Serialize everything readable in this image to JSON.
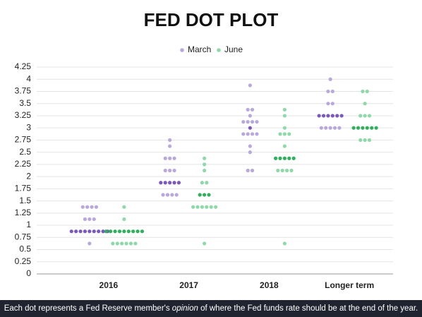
{
  "chart_data": {
    "type": "dot",
    "title": "FED DOT PLOT",
    "categories": [
      "2016",
      "2017",
      "2018",
      "Longer term"
    ],
    "ylim": [
      0,
      4.25
    ],
    "yticks": [
      0,
      0.25,
      0.5,
      0.75,
      1,
      1.25,
      1.5,
      1.75,
      2,
      2.25,
      2.5,
      2.75,
      3,
      3.25,
      3.5,
      3.75,
      4,
      4.25
    ],
    "grid": true,
    "series": [
      {
        "name": "March",
        "color": "#b9a8de",
        "median_color": "#7b58be",
        "medians": [
          0.875,
          1.875,
          3,
          3.25
        ],
        "values": [
          [
            0.625,
            0.875,
            0.875,
            0.875,
            0.875,
            0.875,
            0.875,
            0.875,
            0.875,
            0.875,
            1.125,
            1.125,
            1.125,
            1.375,
            1.375,
            1.375,
            1.375
          ],
          [
            1.625,
            1.625,
            1.625,
            1.625,
            1.875,
            1.875,
            1.875,
            1.875,
            1.875,
            2.125,
            2.125,
            2.125,
            2.375,
            2.375,
            2.375,
            2.625,
            2.75
          ],
          [
            2.125,
            2.125,
            2.5,
            2.625,
            2.875,
            2.875,
            2.875,
            2.875,
            3,
            3.125,
            3.125,
            3.125,
            3.125,
            3.25,
            3.375,
            3.375,
            3.875
          ],
          [
            3,
            3,
            3,
            3,
            3,
            3.25,
            3.25,
            3.25,
            3.25,
            3.25,
            3.25,
            3.5,
            3.5,
            3.75,
            3.75,
            4
          ]
        ]
      },
      {
        "name": "June",
        "color": "#8ed9a8",
        "median_color": "#2eb05c",
        "medians": [
          0.875,
          1.625,
          2.375,
          3
        ],
        "values": [
          [
            0.625,
            0.625,
            0.625,
            0.625,
            0.625,
            0.625,
            0.875,
            0.875,
            0.875,
            0.875,
            0.875,
            0.875,
            0.875,
            0.875,
            0.875,
            1.125,
            1.375
          ],
          [
            0.625,
            1.375,
            1.375,
            1.375,
            1.375,
            1.375,
            1.375,
            1.625,
            1.625,
            1.625,
            1.875,
            1.875,
            2.125,
            2.25,
            2.375
          ],
          [
            0.625,
            2.125,
            2.125,
            2.125,
            2.125,
            2.375,
            2.375,
            2.375,
            2.375,
            2.375,
            2.625,
            2.875,
            2.875,
            2.875,
            3,
            3.25,
            3.375
          ],
          [
            2.75,
            2.75,
            2.75,
            3,
            3,
            3,
            3,
            3,
            3,
            3.25,
            3.25,
            3.25,
            3.5,
            3.75,
            3.75
          ]
        ]
      }
    ]
  },
  "footer": [
    "Each dot represents a Fed Reserve member's ",
    "opinion",
    " of where the Fed funds rate should be at the end of the year."
  ]
}
